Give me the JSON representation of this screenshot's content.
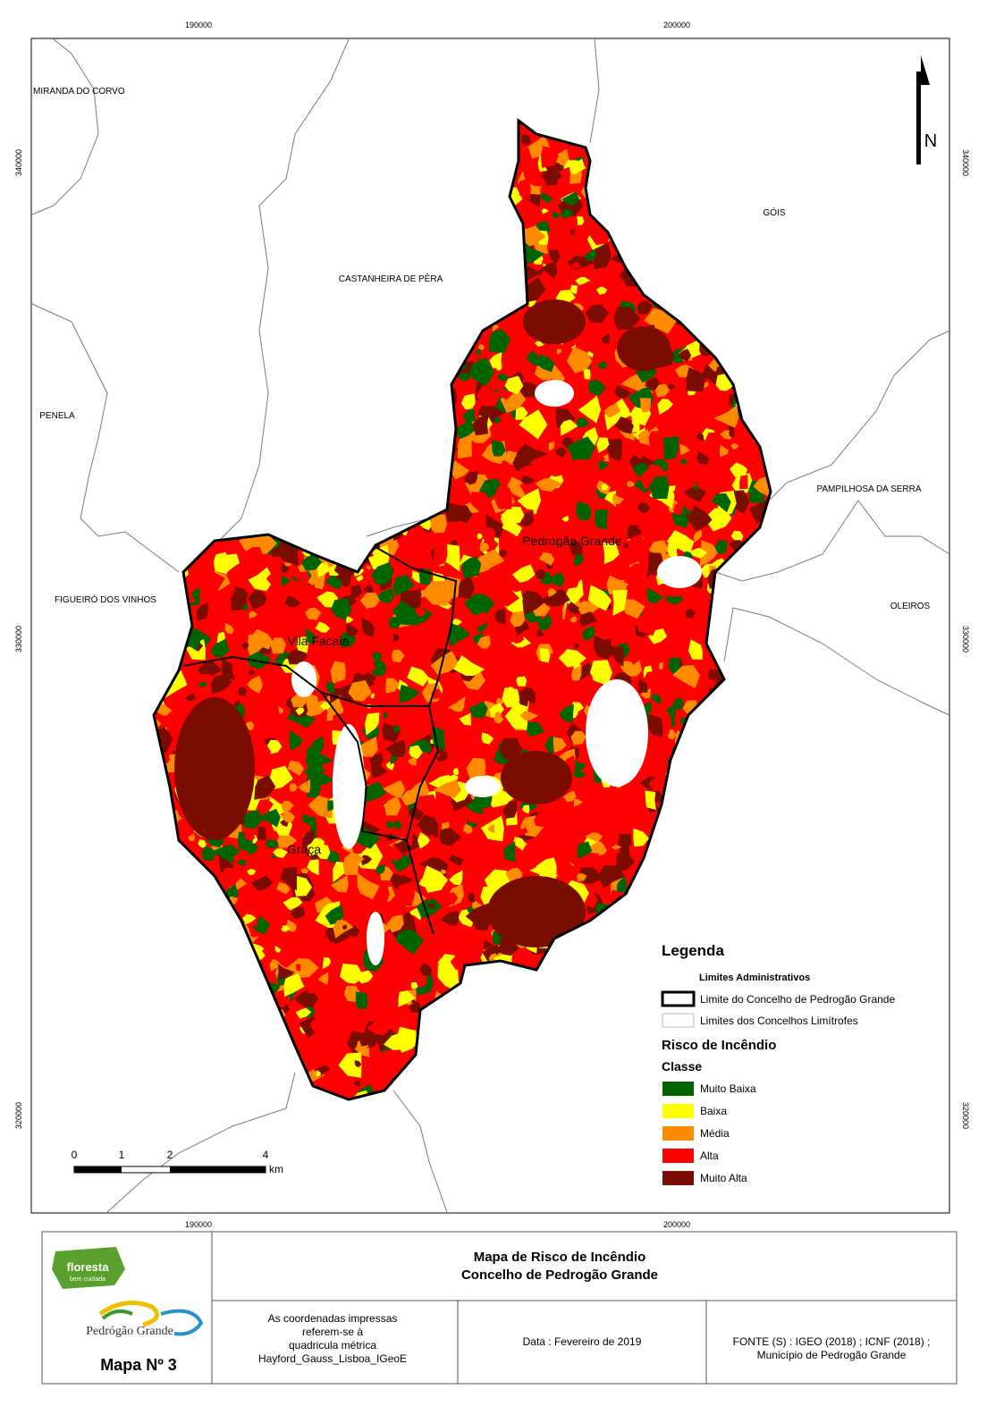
{
  "map": {
    "grid_labels": {
      "top": [
        "190000",
        "200000"
      ],
      "bottom": [
        "190000",
        "200000"
      ],
      "left": [
        "340000",
        "330000",
        "320000"
      ],
      "right": [
        "340000",
        "330000",
        "320000"
      ]
    },
    "north_label": "N",
    "places": [
      "MIRANDA DO CORVO",
      "CASTANHEIRA DE PÊRA",
      "GÓIS",
      "PENELA",
      "PAMPILHOSA DA SERRA",
      "FIGUEIRÓ DOS VINHOS",
      "OLEIROS"
    ],
    "parishes": [
      "Pedrogão Grande",
      "Vila Facaia",
      "Graça"
    ],
    "scale": {
      "ticks": [
        "0",
        "1",
        "2",
        "4"
      ],
      "unit": "km"
    }
  },
  "legend": {
    "title": "Legenda",
    "admin_title": "Limites Administrativos",
    "admin": [
      "Limite do Concelho de Pedrogão Grande",
      "Limites dos Concelhos Limítrofes"
    ],
    "risk_title": "Risco de Incêndio",
    "class_title": "Classe",
    "classes": [
      {
        "label": "Muito Baixa",
        "color": "#006400"
      },
      {
        "label": "Baixa",
        "color": "#ffff00"
      },
      {
        "label": "Média",
        "color": "#ff8c00"
      },
      {
        "label": "Alta",
        "color": "#ff0000"
      },
      {
        "label": "Muito Alta",
        "color": "#7a0c00"
      }
    ]
  },
  "footer": {
    "title": [
      "Mapa de Risco de Incêndio",
      "Concelho de Pedrogão Grande"
    ],
    "coords_note": [
      "As coordenadas impressas",
      "referem-se à",
      "quadricula métrica",
      "Hayford_Gauss_Lisboa_IGeoE"
    ],
    "date": "Data : Fevereiro de 2019",
    "source": [
      "FONTE (S) : IGEO (2018) ; ICNF (2018) ;",
      "Município de Pedrogão Grande"
    ],
    "map_number": "Mapa Nº 3",
    "logos": [
      "floresta",
      "bem cuidada",
      "Pedrógão Grande"
    ]
  }
}
